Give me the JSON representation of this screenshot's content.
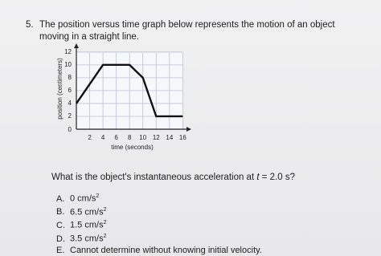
{
  "question": {
    "number": "5.",
    "text": "The position versus time graph below represents the motion of an object moving in a straight line."
  },
  "chart_data": {
    "type": "line",
    "x_label": "time (seconds)",
    "y_label": "position (centimeters)",
    "x": [
      0,
      4,
      8,
      10,
      12,
      16
    ],
    "series": [
      {
        "name": "position",
        "color": "#111111",
        "values": [
          4,
          10,
          10,
          8,
          2,
          2
        ]
      }
    ],
    "xlim": [
      0,
      16.8
    ],
    "ylim": [
      0,
      12.6
    ],
    "xticks": [
      2,
      4,
      6,
      8,
      10,
      12,
      14,
      16
    ],
    "yticks": [
      0,
      2,
      4,
      6,
      8,
      10,
      12
    ],
    "grid": true
  },
  "prompt": {
    "before": "What is the object's instantaneous acceleration at ",
    "variable": "t",
    "after": " = 2.0 s?"
  },
  "options": [
    {
      "letter": "A.",
      "text": "0 cm/s",
      "sup": "2"
    },
    {
      "letter": "B.",
      "text": "6.5 cm/s",
      "sup": "2"
    },
    {
      "letter": "C.",
      "text": "1.5 cm/s",
      "sup": "2"
    },
    {
      "letter": "D.",
      "text": "3.5 cm/s",
      "sup": "2"
    },
    {
      "letter": "E.",
      "text": "Cannot determine without knowing initial velocity."
    }
  ]
}
